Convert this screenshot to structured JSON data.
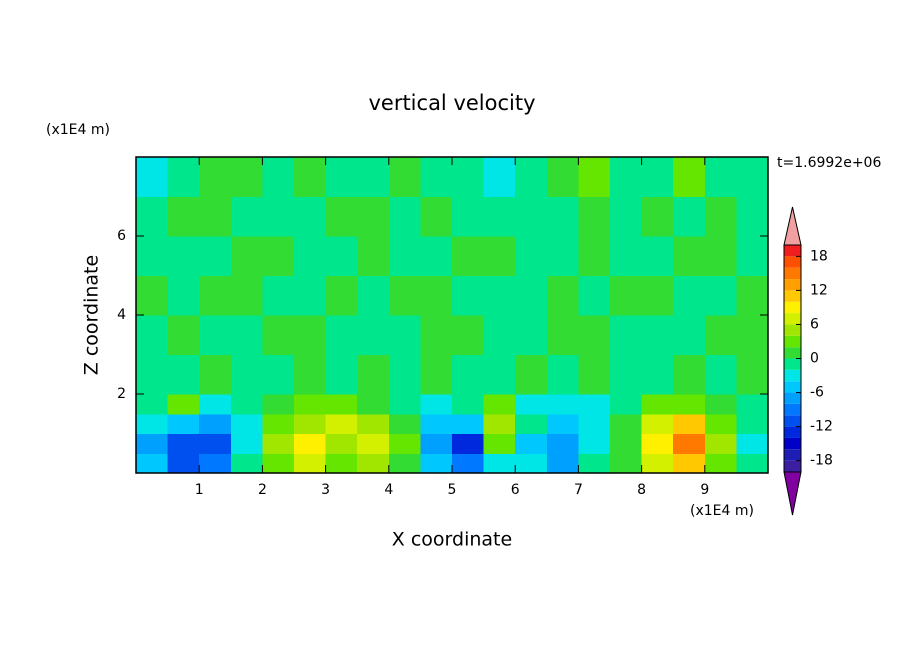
{
  "chart_data": {
    "type": "contour",
    "title": "vertical velocity",
    "x_label": "X coordinate",
    "y_label": "Z coordinate",
    "x_unit": "(x1E4 m)",
    "y_unit": "(x1E4 m)",
    "annotation": "t=1.6992e+06",
    "xlim": [
      0,
      10
    ],
    "ylim": [
      0,
      8
    ],
    "xticks": [
      1,
      2,
      3,
      4,
      5,
      6,
      7,
      8,
      9
    ],
    "yticks": [
      2,
      4,
      6
    ],
    "x_bins": [
      0,
      0.5,
      1,
      1.5,
      2,
      2.5,
      3,
      3.5,
      4,
      4.5,
      5,
      5.5,
      6,
      6.5,
      7,
      7.5,
      8,
      8.5,
      9,
      9.5,
      10
    ],
    "z_bins": [
      0,
      0.5,
      1,
      1.5,
      2,
      3,
      4,
      5,
      6,
      7,
      8
    ],
    "values": [
      [
        -6,
        -12,
        -10,
        -2,
        2,
        6,
        2,
        4,
        0,
        -6,
        -10,
        -4,
        -4,
        -8,
        -2,
        0,
        6,
        10,
        2,
        -2
      ],
      [
        -8,
        -12,
        -12,
        -4,
        4,
        8,
        4,
        6,
        2,
        -8,
        -14,
        2,
        -6,
        -8,
        -4,
        0,
        8,
        14,
        4,
        -4
      ],
      [
        -4,
        -6,
        -8,
        -4,
        2,
        4,
        6,
        4,
        0,
        -6,
        -6,
        4,
        -2,
        -6,
        -4,
        0,
        6,
        10,
        2,
        -2
      ],
      [
        -2,
        2,
        -4,
        -2,
        0,
        2,
        2,
        0,
        -2,
        -4,
        -2,
        2,
        -4,
        -4,
        -4,
        -2,
        2,
        2,
        0,
        -2
      ],
      [
        -1,
        -1,
        1,
        -1,
        -1,
        1,
        -1,
        1,
        -1,
        1,
        -1,
        -1,
        1,
        -1,
        1,
        -1,
        -1,
        1,
        -1,
        1
      ],
      [
        -1,
        1,
        -1,
        -1,
        1,
        1,
        -1,
        -1,
        -1,
        1,
        1,
        -1,
        -1,
        1,
        1,
        -1,
        -1,
        -1,
        1,
        1
      ],
      [
        1,
        -1,
        1,
        1,
        -1,
        -1,
        1,
        -1,
        1,
        1,
        -1,
        -1,
        -1,
        1,
        -1,
        1,
        1,
        -1,
        -1,
        1
      ],
      [
        -1,
        -1,
        -1,
        1,
        1,
        -1,
        -1,
        1,
        -1,
        -1,
        1,
        1,
        -1,
        -1,
        1,
        -1,
        -1,
        1,
        1,
        -1
      ],
      [
        -1,
        1,
        1,
        -1,
        -1,
        -1,
        1,
        1,
        -1,
        1,
        -1,
        -1,
        -1,
        -1,
        1,
        -1,
        1,
        -1,
        1,
        -1
      ],
      [
        -3,
        -1,
        1,
        1,
        -1,
        1,
        -1,
        -1,
        1,
        -1,
        -1,
        -3,
        -1,
        1,
        3,
        -1,
        -1,
        3,
        -1,
        -1
      ]
    ],
    "levels": [
      -20,
      -18,
      -16,
      -14,
      -12,
      -10,
      -8,
      -6,
      -4,
      -2,
      0,
      2,
      4,
      6,
      8,
      10,
      12,
      14,
      16,
      18,
      20
    ],
    "colors": [
      "#3c1ea0",
      "#1e1eb4",
      "#0000c8",
      "#0028dc",
      "#0050f0",
      "#0078ff",
      "#00a0ff",
      "#00c8ff",
      "#00e6e6",
      "#00e68c",
      "#32dc32",
      "#64e600",
      "#a0e600",
      "#d2f000",
      "#fff000",
      "#ffc800",
      "#ffa000",
      "#ff7800",
      "#ff5000",
      "#f01e1e"
    ],
    "under_color": "#8000a0",
    "over_color": "#f0a0a0",
    "colorbar_ticks": [
      -18,
      -12,
      -6,
      0,
      6,
      12,
      18
    ]
  }
}
